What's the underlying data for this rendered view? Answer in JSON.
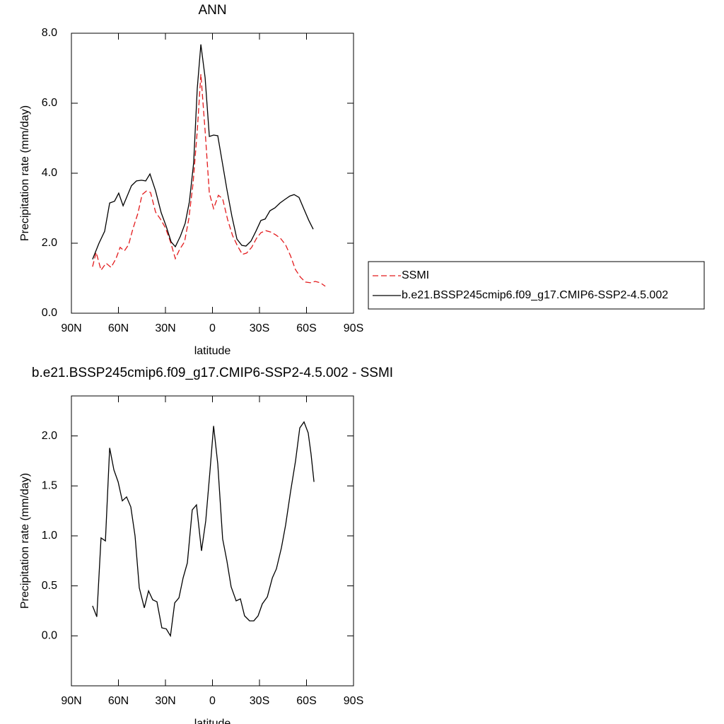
{
  "chart_data": [
    {
      "type": "line",
      "title": "ANN",
      "x_label": "latitude",
      "y_label": "Precipitation rate (mm/day)",
      "xlim": [
        90,
        -90
      ],
      "xticks": [
        {
          "value": 90,
          "label": "90N"
        },
        {
          "value": 60,
          "label": "60N"
        },
        {
          "value": 30,
          "label": "30N"
        },
        0,
        {
          "value": -30,
          "label": "30S"
        },
        {
          "value": -60,
          "label": "60S"
        },
        {
          "value": -90,
          "label": "90S"
        }
      ],
      "ylim": [
        0,
        8
      ],
      "yticks": [
        {
          "value": 0,
          "label": "0.0"
        },
        {
          "value": 2,
          "label": "2.0"
        },
        {
          "value": 4,
          "label": "4.0"
        },
        {
          "value": 6,
          "label": "6.0"
        },
        {
          "value": 8,
          "label": "8.0"
        }
      ],
      "legend": "outside-right",
      "series": [
        {
          "name": "SSMI",
          "color": "#e31a1c",
          "line_style": "dashed",
          "x": [
            76.5,
            74.2,
            71.1,
            67.9,
            64.7,
            61.6,
            58.9,
            56.2,
            53.5,
            50.7,
            47.6,
            44.9,
            42.2,
            39.5,
            36.3,
            33.2,
            30,
            26.8,
            23.7,
            21,
            17.8,
            15.1,
            12.4,
            9.7,
            7.4,
            4.7,
            2,
            -0.7,
            -3.8,
            -6.5,
            -9.7,
            -12.8,
            -16,
            -19.1,
            -21.8,
            -25,
            -28.1,
            -30.9,
            -34,
            -37.2,
            -40.3,
            -43.4,
            -46.6,
            -49.8,
            -52.9,
            -56.1,
            -59.3,
            -62.5,
            -65.6,
            -68.8,
            -72
          ],
          "values": [
            1.33,
            1.74,
            1.23,
            1.43,
            1.31,
            1.56,
            1.88,
            1.78,
            1.96,
            2.42,
            2.85,
            3.39,
            3.49,
            3.45,
            2.89,
            2.69,
            2.44,
            2.04,
            1.56,
            1.82,
            2.04,
            2.69,
            3.7,
            5.21,
            6.83,
            5.21,
            3.43,
            2.99,
            3.37,
            3.27,
            2.67,
            2.22,
            1.92,
            1.68,
            1.72,
            1.88,
            2.14,
            2.3,
            2.36,
            2.32,
            2.24,
            2.14,
            1.96,
            1.64,
            1.25,
            1.03,
            0.89,
            0.87,
            0.91,
            0.87,
            0.77
          ]
        },
        {
          "name": "b.e21.BSSP245cmip6.f09_g17.CMIP6-SSP2-4.5.002",
          "color": "#000000",
          "line_style": "solid",
          "x": [
            76.5,
            72.4,
            68.8,
            65.6,
            62.5,
            59.8,
            57,
            54.4,
            51.7,
            48.5,
            45.3,
            42.6,
            39.9,
            36.3,
            32.7,
            29.5,
            26.4,
            23.7,
            20.5,
            17.4,
            14.7,
            12,
            9.7,
            7.4,
            4.7,
            2,
            -0.7,
            -3.4,
            -6.1,
            -9.2,
            -12.4,
            -15.6,
            -18.7,
            -21.4,
            -24.6,
            -27.7,
            -30.9,
            -33.6,
            -36.7,
            -39.9,
            -43.1,
            -46.2,
            -49.4,
            -52.1,
            -55.2,
            -58.4,
            -61.5,
            -64.3
          ],
          "values": [
            1.54,
            2.0,
            2.34,
            3.15,
            3.2,
            3.43,
            3.07,
            3.35,
            3.64,
            3.78,
            3.8,
            3.78,
            3.98,
            3.5,
            2.87,
            2.48,
            2.04,
            1.9,
            2.2,
            2.57,
            3.19,
            4.3,
            6.42,
            7.68,
            6.73,
            5.05,
            5.09,
            5.07,
            4.36,
            3.54,
            2.77,
            2.12,
            1.94,
            1.92,
            2.06,
            2.34,
            2.65,
            2.69,
            2.93,
            3.01,
            3.15,
            3.25,
            3.35,
            3.39,
            3.31,
            2.97,
            2.65,
            2.4
          ]
        }
      ]
    },
    {
      "type": "line",
      "title": "b.e21.BSSP245cmip6.f09_g17.CMIP6-SSP2-4.5.002 - SSMI",
      "x_label": "latitude",
      "y_label": "Precipitation rate (mm/day)",
      "xlim": [
        90,
        -90
      ],
      "xticks": [
        {
          "value": 90,
          "label": "90N"
        },
        {
          "value": 60,
          "label": "60N"
        },
        {
          "value": 30,
          "label": "30N"
        },
        0,
        {
          "value": -30,
          "label": "30S"
        },
        {
          "value": -60,
          "label": "60S"
        },
        {
          "value": -90,
          "label": "90S"
        }
      ],
      "ylim": [
        -0.5,
        2.4
      ],
      "yticks": [
        {
          "value": 0,
          "label": "0.0"
        },
        0.5,
        {
          "value": 1,
          "label": "1.0"
        },
        1.5,
        {
          "value": 2,
          "label": "2.0"
        }
      ],
      "series": [
        {
          "color": "#000000",
          "line_style": "solid",
          "x": [
            76.5,
            73.8,
            71.1,
            68.3,
            65.6,
            62.9,
            60.2,
            57.5,
            54.8,
            52.1,
            49.4,
            46.7,
            43.5,
            40.8,
            38.1,
            35.4,
            32.3,
            29.5,
            26.8,
            24.1,
            21.4,
            18.7,
            16,
            12.9,
            10.2,
            7,
            4.3,
            1.6,
            -0.7,
            -3.4,
            -6.5,
            -9.2,
            -11.9,
            -15.1,
            -17.8,
            -20.5,
            -23.7,
            -26.4,
            -29.1,
            -31.8,
            -35,
            -38.2,
            -40.8,
            -44,
            -46.7,
            -49.8,
            -53,
            -55.7,
            -58.4,
            -61.1,
            -62.9,
            -64.8
          ],
          "values": [
            0.3,
            0.19,
            0.98,
            0.95,
            1.88,
            1.66,
            1.54,
            1.35,
            1.39,
            1.29,
            1.0,
            0.48,
            0.28,
            0.45,
            0.36,
            0.34,
            0.08,
            0.07,
            0.0,
            0.33,
            0.38,
            0.58,
            0.73,
            1.26,
            1.31,
            0.85,
            1.15,
            1.65,
            2.1,
            1.72,
            0.97,
            0.75,
            0.49,
            0.35,
            0.37,
            0.2,
            0.15,
            0.15,
            0.2,
            0.32,
            0.39,
            0.58,
            0.67,
            0.88,
            1.11,
            1.44,
            1.75,
            2.08,
            2.14,
            2.03,
            1.82,
            1.54
          ]
        }
      ]
    }
  ]
}
